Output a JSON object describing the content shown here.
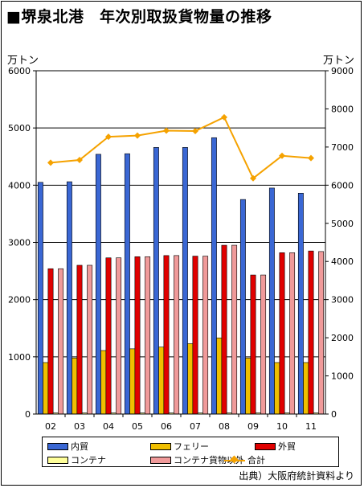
{
  "title": "■堺泉北港　年次別取扱貨物量の推移",
  "source": "出典）大阪府統計資料より",
  "colors": {
    "naibo": "#3a67d4",
    "ferry": "#f0bf00",
    "gaibo": "#e00000",
    "container": "#ffff99",
    "container_igai": "#f09a9a",
    "total": "#f5a200"
  },
  "chart_data": {
    "type": "bar",
    "title": "■堺泉北港　年次別取扱貨物量の推移",
    "categories": [
      "02",
      "03",
      "04",
      "05",
      "06",
      "07",
      "08",
      "09",
      "10",
      "11"
    ],
    "y_left": {
      "unit": "万トン",
      "range": [
        0,
        6000
      ],
      "ticks": [
        "0",
        "1000",
        "2000",
        "3000",
        "4000",
        "5000",
        "6000"
      ]
    },
    "y_right": {
      "unit": "万トン",
      "range": [
        0,
        9000
      ],
      "ticks": [
        "0",
        "1000",
        "2000",
        "3000",
        "4000",
        "5000",
        "6000",
        "7000",
        "8000",
        "9000"
      ]
    },
    "grid": true,
    "legend_position": "bottom",
    "series": [
      {
        "name": "内貿",
        "type": "bar",
        "axis": "left",
        "values": [
          4050,
          4060,
          4540,
          4550,
          4660,
          4660,
          4830,
          3750,
          3950,
          3860
        ]
      },
      {
        "name": "フェリー",
        "type": "bar",
        "axis": "left",
        "values": [
          900,
          980,
          1110,
          1140,
          1170,
          1230,
          1330,
          980,
          900,
          900
        ]
      },
      {
        "name": "外貿",
        "type": "bar",
        "axis": "left",
        "values": [
          2540,
          2600,
          2730,
          2750,
          2770,
          2760,
          2950,
          2430,
          2820,
          2850
        ]
      },
      {
        "name": "コンテナ",
        "type": "bar",
        "axis": "left",
        "values": [
          20,
          20,
          20,
          20,
          20,
          20,
          20,
          20,
          20,
          20
        ]
      },
      {
        "name": "コンテナ貨物以外",
        "type": "bar",
        "axis": "left",
        "values": [
          2540,
          2600,
          2730,
          2750,
          2770,
          2760,
          2950,
          2430,
          2820,
          2840
        ]
      },
      {
        "name": "合計",
        "type": "line",
        "axis": "right",
        "values": [
          6590,
          6660,
          7270,
          7300,
          7430,
          7420,
          7780,
          6180,
          6770,
          6710
        ]
      }
    ]
  }
}
